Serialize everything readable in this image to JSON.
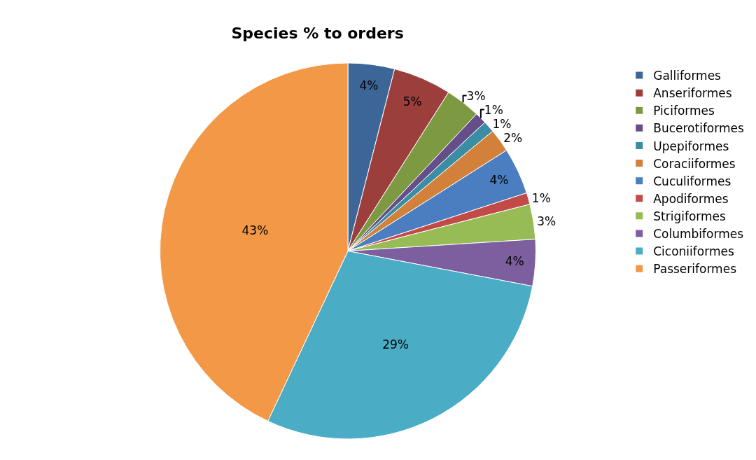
{
  "chart_data": {
    "type": "pie",
    "title": "Species % to orders",
    "categories": [
      "Galliformes",
      "Anseriformes",
      "Piciformes",
      "Bucerotiformes",
      "Upepiformes",
      "Coraciiformes",
      "Cuculiformes",
      "Apodiformes",
      "Strigiformes",
      "Columbiformes",
      "Ciconiiformes",
      "Passeriformes"
    ],
    "values": [
      4,
      5,
      3,
      1,
      1,
      2,
      4,
      1,
      3,
      4,
      29,
      43
    ],
    "colors": [
      "#3c6598",
      "#9c3f3c",
      "#7d9a43",
      "#654e89",
      "#3b8da3",
      "#d2803a",
      "#4a7ec0",
      "#c24b48",
      "#97bb55",
      "#7d5fa0",
      "#4bacc6",
      "#f39846"
    ],
    "value_labels": [
      "4%",
      "5%",
      "3%",
      "1%",
      "1%",
      "2%",
      "4%",
      "1%",
      "3%",
      "4%",
      "29%",
      "43%"
    ],
    "legend": "right"
  }
}
